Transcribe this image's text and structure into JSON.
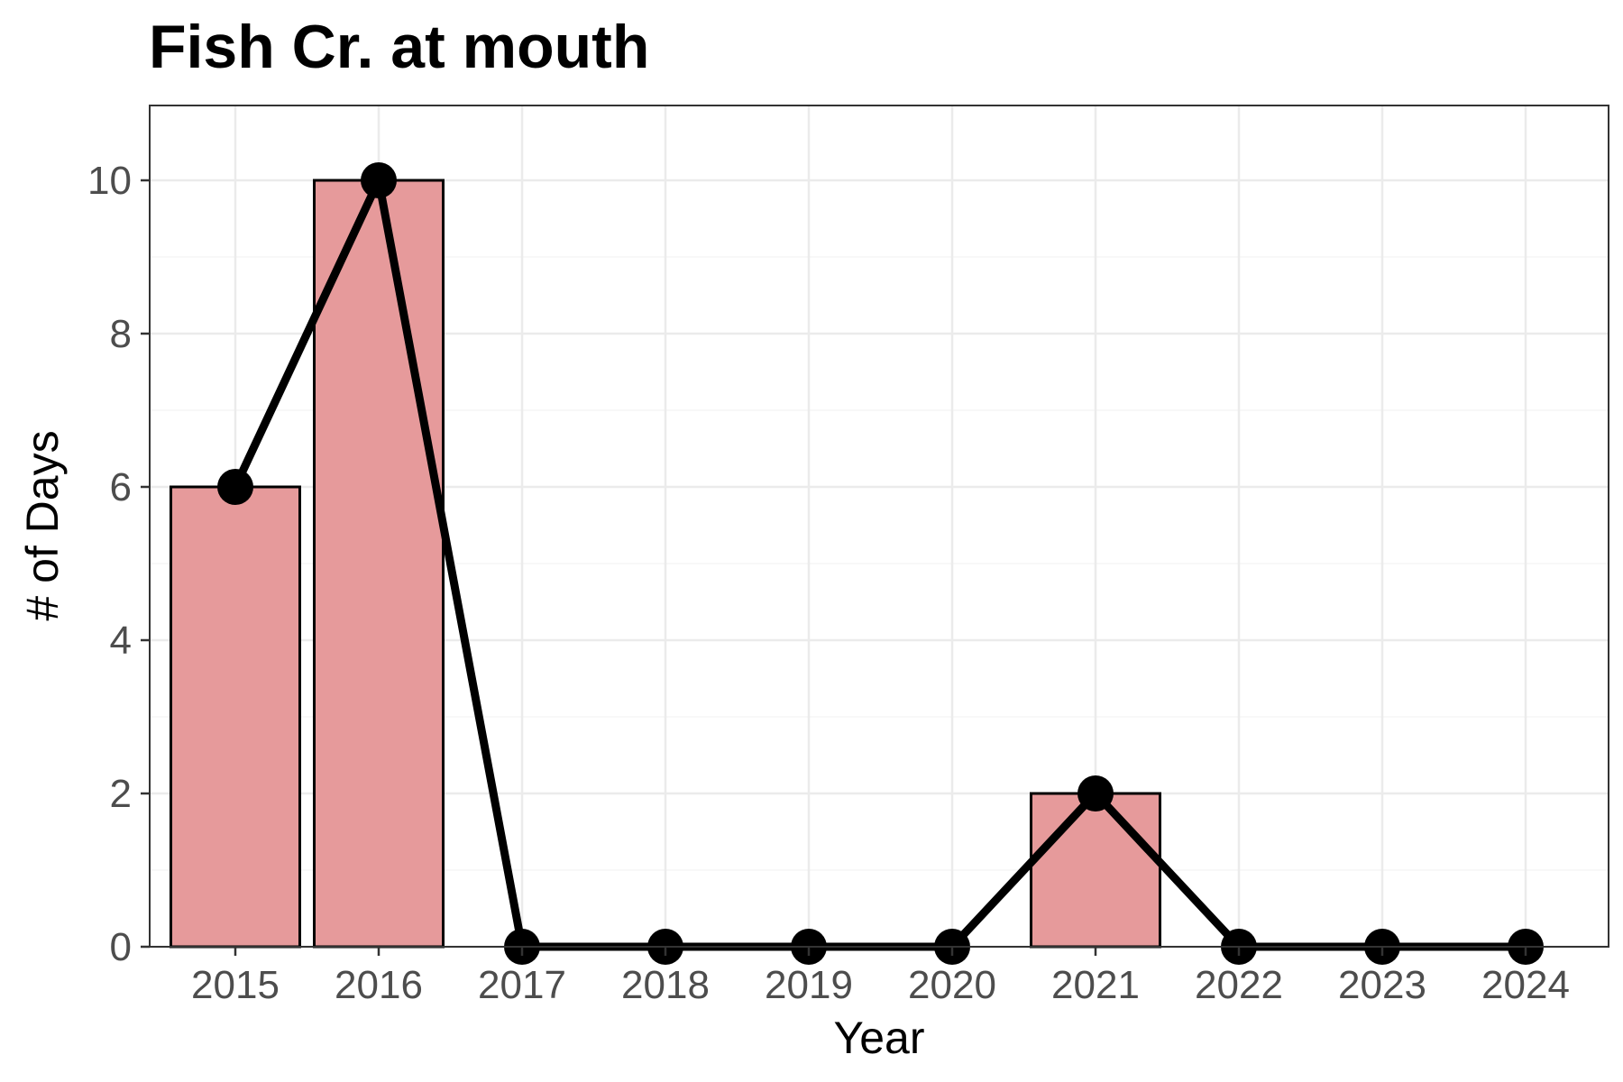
{
  "chart_data": {
    "type": "bar",
    "title": "Fish Cr. at mouth",
    "xlabel": "Year",
    "ylabel": "# of Days",
    "categories": [
      "2015",
      "2016",
      "2017",
      "2018",
      "2019",
      "2020",
      "2021",
      "2022",
      "2023",
      "2024"
    ],
    "series": [
      {
        "type": "bar",
        "values": [
          6,
          10,
          0,
          0,
          0,
          0,
          2,
          0,
          0,
          0
        ]
      },
      {
        "type": "line",
        "values": [
          6,
          10,
          0,
          0,
          0,
          0,
          2,
          0,
          0,
          0
        ]
      }
    ],
    "yticks": [
      "0",
      "2",
      "4",
      "6",
      "8",
      "10"
    ],
    "ylim": [
      0,
      11
    ],
    "grid": true,
    "colors": {
      "bar_fill": "#e69a9b",
      "bar_stroke": "#000000",
      "line": "#000000",
      "grid_major": "#ebebeb",
      "grid_minor": "#f5f5f5",
      "panel_border": "#333333"
    }
  }
}
